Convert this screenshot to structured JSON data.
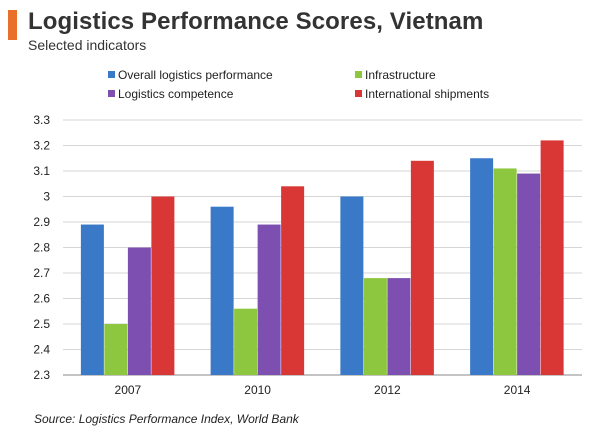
{
  "header": {
    "title": "Logistics Performance Scores, Vietnam",
    "subtitle": "Selected indicators",
    "accent_color": "#e8702a"
  },
  "footer": {
    "source": "Source: Logistics Performance Index, World Bank"
  },
  "chart_data": {
    "type": "bar",
    "title": "Logistics Performance Scores, Vietnam",
    "subtitle": "Selected indicators",
    "xlabel": "",
    "ylabel": "",
    "categories": [
      "2007",
      "2010",
      "2012",
      "2014"
    ],
    "ylim": [
      2.3,
      3.3
    ],
    "yticks": [
      "2.3",
      "2.4",
      "2.5",
      "2.6",
      "2.7",
      "2.8",
      "2.9",
      "3",
      "3.1",
      "3.2",
      "3.3"
    ],
    "grid": true,
    "legend_position": "top",
    "series": [
      {
        "name": "Overall logistics performance",
        "color": "#3a78c8",
        "values": [
          2.89,
          2.96,
          3.0,
          3.15
        ]
      },
      {
        "name": "Infrastructure",
        "color": "#8dc63f",
        "values": [
          2.5,
          2.56,
          2.68,
          3.11
        ]
      },
      {
        "name": "Logistics competence",
        "color": "#7d4fb0",
        "values": [
          2.8,
          2.89,
          2.68,
          3.09
        ]
      },
      {
        "name": "International shipments",
        "color": "#d93636",
        "values": [
          3.0,
          3.04,
          3.14,
          3.22
        ]
      }
    ]
  }
}
